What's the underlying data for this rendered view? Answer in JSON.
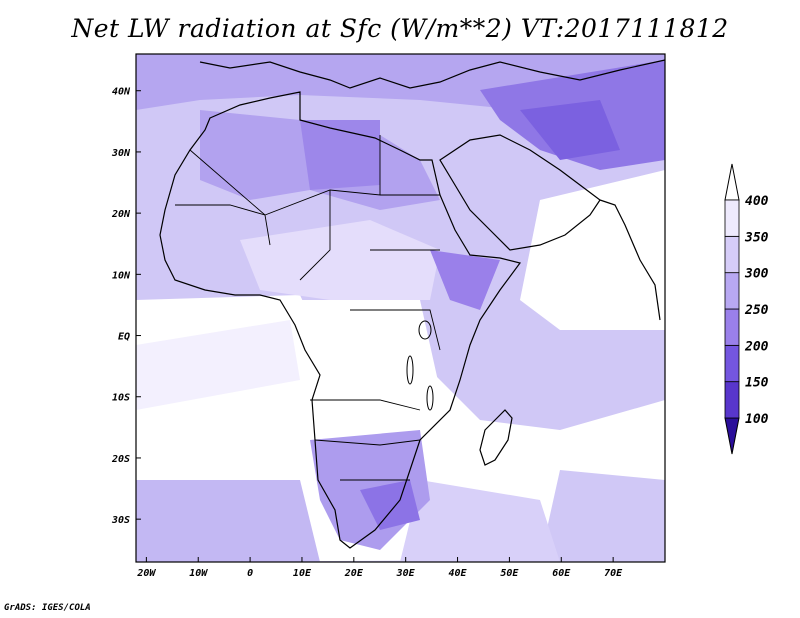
{
  "title": "Net LW radiation at Sfc (W/m**2) VT:2017111812",
  "credit": "GrADS: IGES/COLA",
  "map": {
    "lon_range": [
      -22,
      80
    ],
    "lat_range": [
      -37,
      46
    ],
    "lat_ticks": [
      {
        "lat": 40,
        "label": "40N"
      },
      {
        "lat": 30,
        "label": "30N"
      },
      {
        "lat": 20,
        "label": "20N"
      },
      {
        "lat": 10,
        "label": "10N"
      },
      {
        "lat": 0,
        "label": "EQ"
      },
      {
        "lat": -10,
        "label": "10S"
      },
      {
        "lat": -20,
        "label": "20S"
      },
      {
        "lat": -30,
        "label": "30S"
      }
    ],
    "lon_ticks": [
      {
        "lon": -20,
        "label": "20W"
      },
      {
        "lon": -10,
        "label": "10W"
      },
      {
        "lon": 0,
        "label": "0"
      },
      {
        "lon": 10,
        "label": "10E"
      },
      {
        "lon": 20,
        "label": "20E"
      },
      {
        "lon": 30,
        "label": "30E"
      },
      {
        "lon": 40,
        "label": "40E"
      },
      {
        "lon": 50,
        "label": "50E"
      },
      {
        "lon": 60,
        "label": "60E"
      },
      {
        "lon": 70,
        "label": "70E"
      }
    ]
  },
  "colorbar": {
    "levels": [
      100,
      150,
      200,
      250,
      300,
      350,
      400
    ],
    "labels": [
      "100",
      "150",
      "200",
      "250",
      "300",
      "350",
      "400"
    ],
    "colors": [
      "#3d1fb0",
      "#5836cc",
      "#7456e0",
      "#9a80ea",
      "#b8a8f2",
      "#d6cdf8",
      "#eeeafd"
    ],
    "end_colors": {
      "below": "#2a0e9a",
      "above": "#ffffff"
    }
  },
  "colors": {
    "ocean_bg": "#c9c0f5",
    "land_low": "#ffffff",
    "land_mid": "#d6cdf8",
    "land_high": "#9a80ea",
    "ocean_high": "#eeeafd"
  }
}
